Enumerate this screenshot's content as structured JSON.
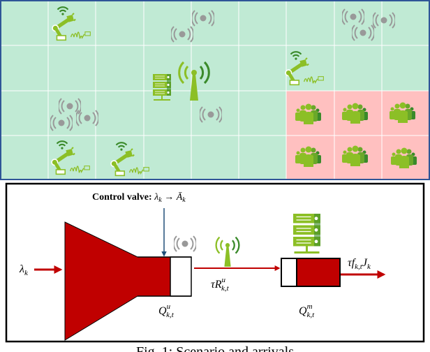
{
  "scenario": {
    "colors": {
      "factory_zone": "#c0ead4",
      "crowd_zone": "#ffc0c0",
      "border": "#2f5597",
      "grid_line": "#ffffff",
      "icon_green": "#8cbf26",
      "icon_dark_green": "#3a8a2a",
      "sensor_gray": "#999999"
    },
    "icons": [
      "robot-arm-icon",
      "sensor-icon",
      "base-station-antenna-icon",
      "server-rack-icon",
      "crowd-icon"
    ]
  },
  "diagram": {
    "control_valve_label": "Control valve: ",
    "control_valve_from": "λ",
    "control_valve_from_sub": "k",
    "control_valve_arrow": " → ",
    "control_valve_to": "Ā",
    "control_valve_to_sub": "k",
    "input_symbol": "λ",
    "input_sub": "k",
    "user_queue_symbol": "Q",
    "user_queue_sup": "u",
    "user_queue_sub": "k,t",
    "rate_prefix": "τR",
    "rate_sup": "u",
    "rate_sub": "k,t",
    "mec_queue_symbol": "Q",
    "mec_queue_sup": "m",
    "mec_queue_sub": "k,t",
    "output_prefix": "τf",
    "output_sub": "k,t",
    "output_J": "J",
    "output_J_sub": "k",
    "colors": {
      "queue_fill": "#c00000",
      "valve_arrow": "#1f4e79"
    }
  },
  "caption": "Fig. 1: Scenario and arrivals"
}
